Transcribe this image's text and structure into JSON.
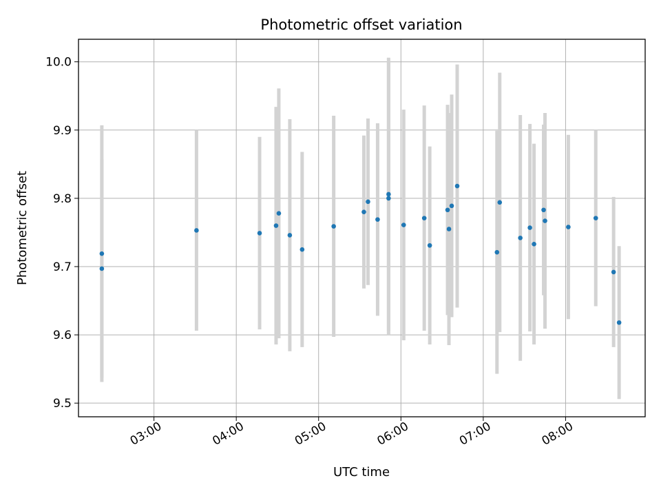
{
  "chart_data": {
    "type": "scatter",
    "title": "Photometric offset variation",
    "xlabel": "UTC time",
    "ylabel": "Photometric offset",
    "x_tick_labels": [
      "03:00",
      "04:00",
      "05:00",
      "06:00",
      "07:00",
      "08:00"
    ],
    "y_tick_labels": [
      "9.5",
      "9.6",
      "9.7",
      "9.8",
      "9.9",
      "10.0"
    ],
    "xlim": [
      "02:05",
      "08:58"
    ],
    "ylim": [
      9.48,
      10.033
    ],
    "grid": true,
    "colors": {
      "point": "#1f77b4",
      "errorbar": "#d3d3d3",
      "grid": "#b0b0b0"
    },
    "points": [
      {
        "x": "02:22",
        "y": 9.719,
        "err": 0.188
      },
      {
        "x": "02:22",
        "y": 9.697,
        "err": 0.16
      },
      {
        "x": "03:31",
        "y": 9.753,
        "err": 0.147
      },
      {
        "x": "04:17",
        "y": 9.749,
        "err": 0.141
      },
      {
        "x": "04:29",
        "y": 9.76,
        "err": 0.174
      },
      {
        "x": "04:31",
        "y": 9.778,
        "err": 0.183
      },
      {
        "x": "04:39",
        "y": 9.746,
        "err": 0.17
      },
      {
        "x": "04:48",
        "y": 9.725,
        "err": 0.143
      },
      {
        "x": "05:11",
        "y": 9.759,
        "err": 0.162
      },
      {
        "x": "05:33",
        "y": 9.78,
        "err": 0.112
      },
      {
        "x": "05:36",
        "y": 9.795,
        "err": 0.122
      },
      {
        "x": "05:43",
        "y": 9.769,
        "err": 0.141
      },
      {
        "x": "05:51",
        "y": 9.8,
        "err": 0.2
      },
      {
        "x": "05:51",
        "y": 9.806,
        "err": 0.2
      },
      {
        "x": "06:02",
        "y": 9.761,
        "err": 0.169
      },
      {
        "x": "06:17",
        "y": 9.771,
        "err": 0.165
      },
      {
        "x": "06:21",
        "y": 9.731,
        "err": 0.145
      },
      {
        "x": "06:34",
        "y": 9.783,
        "err": 0.154
      },
      {
        "x": "06:35",
        "y": 9.755,
        "err": 0.17
      },
      {
        "x": "06:37",
        "y": 9.789,
        "err": 0.163
      },
      {
        "x": "06:41",
        "y": 9.818,
        "err": 0.178
      },
      {
        "x": "07:10",
        "y": 9.721,
        "err": 0.178
      },
      {
        "x": "07:12",
        "y": 9.794,
        "err": 0.19
      },
      {
        "x": "07:27",
        "y": 9.742,
        "err": 0.18
      },
      {
        "x": "07:34",
        "y": 9.757,
        "err": 0.152
      },
      {
        "x": "07:37",
        "y": 9.733,
        "err": 0.147
      },
      {
        "x": "07:44",
        "y": 9.783,
        "err": 0.125
      },
      {
        "x": "07:45",
        "y": 9.767,
        "err": 0.158
      },
      {
        "x": "08:02",
        "y": 9.758,
        "err": 0.135
      },
      {
        "x": "08:22",
        "y": 9.771,
        "err": 0.129
      },
      {
        "x": "08:35",
        "y": 9.692,
        "err": 0.11
      },
      {
        "x": "08:39",
        "y": 9.618,
        "err": 0.112
      }
    ]
  }
}
